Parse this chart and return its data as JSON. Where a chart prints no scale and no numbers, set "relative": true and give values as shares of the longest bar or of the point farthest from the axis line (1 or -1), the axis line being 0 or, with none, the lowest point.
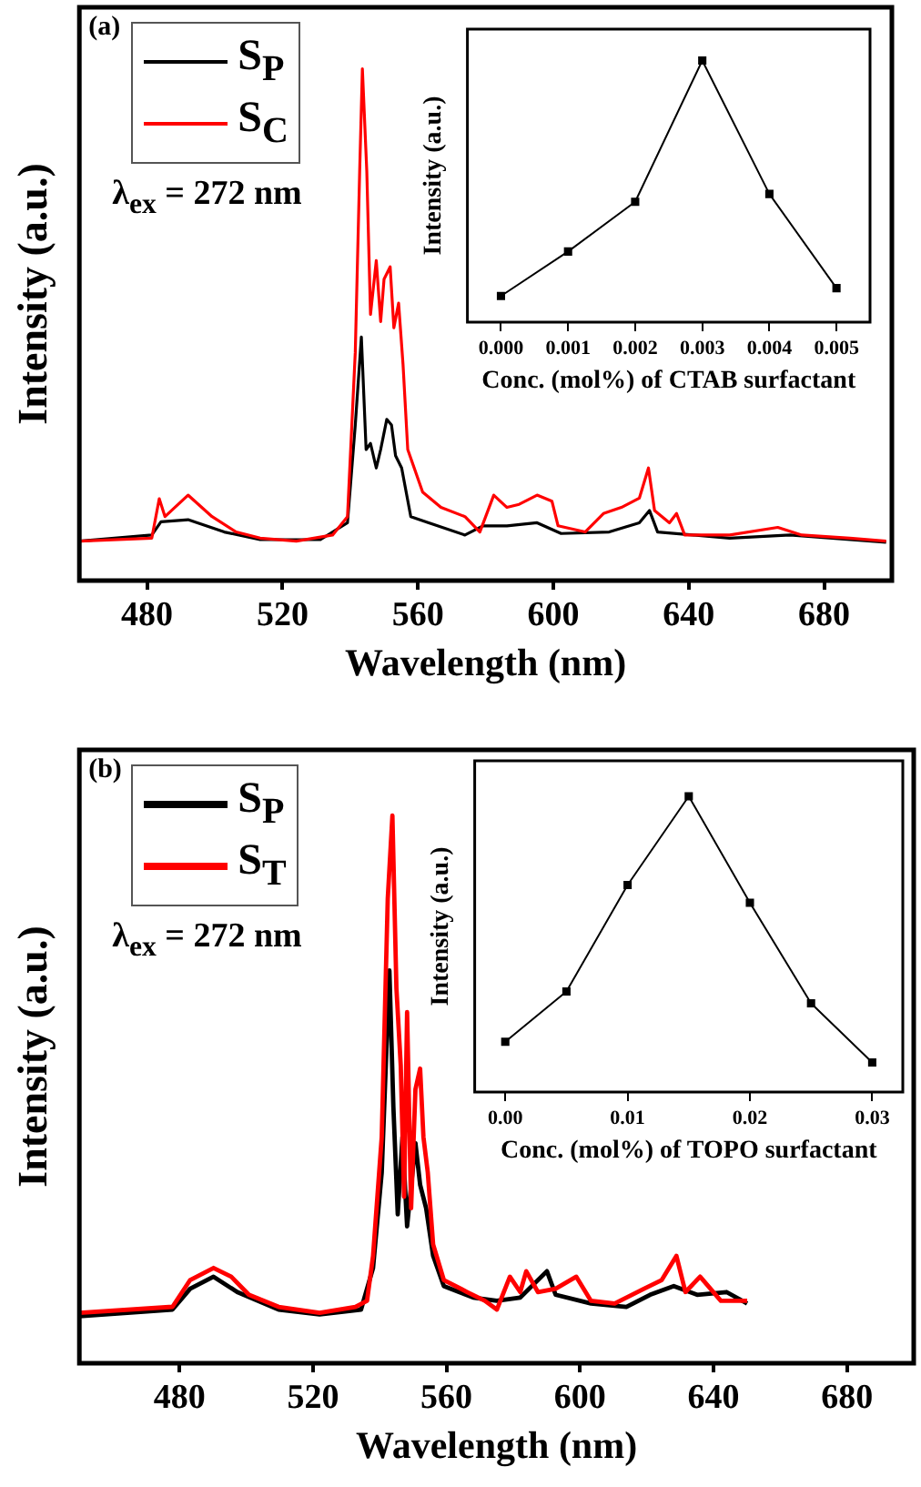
{
  "chart_data": [
    {
      "type": "line",
      "xlabel": "Wavelength (nm)",
      "ylabel": "Intensity (a.u.)",
      "relative": true,
      "xlim": [
        460,
        700
      ],
      "xticks": [
        480,
        520,
        560,
        600,
        640,
        680
      ],
      "legend": "top left",
      "marker": "none",
      "annotations": [
        "(a)",
        "λ$_{ex}$ = 272 nm"
      ],
      "series": [
        {
          "name": "S$_{P}$",
          "color": "#000000",
          "x": [
            460.1,
            481.4,
            484.1,
            492.1,
            502.8,
            513.4,
            531.2,
            539.2,
            541.5,
            543.3,
            544.7,
            546,
            547.7,
            549,
            550.8,
            552.2,
            553.4,
            555.2,
            557.9,
            563.2,
            573.9,
            579.2,
            586.3,
            595.2,
            602.3,
            616.5,
            625.4,
            628.4,
            630.8,
            652.1,
            669.9,
            698.3
          ],
          "values": [
            0.077,
            0.089,
            0.115,
            0.119,
            0.095,
            0.08,
            0.08,
            0.113,
            0.304,
            0.476,
            0.256,
            0.268,
            0.22,
            0.256,
            0.315,
            0.304,
            0.244,
            0.22,
            0.125,
            0.113,
            0.089,
            0.107,
            0.107,
            0.113,
            0.092,
            0.095,
            0.113,
            0.137,
            0.095,
            0.083,
            0.089,
            0.075
          ]
        },
        {
          "name": "S$_{C}$",
          "color": "#ff0000",
          "x": [
            460.1,
            481.4,
            483.6,
            485.3,
            492.1,
            499.2,
            506.3,
            513.4,
            524.1,
            534.8,
            539.2,
            541.5,
            542.8,
            543.6,
            544.9,
            546,
            547.7,
            549,
            550,
            551.8,
            552.9,
            554.3,
            555.6,
            557,
            561.4,
            566.8,
            573.9,
            578.3,
            582.4,
            586.3,
            589.9,
            595.2,
            599.6,
            601.4,
            609.4,
            614.8,
            620.1,
            625.4,
            628.1,
            629.9,
            634.3,
            636.4,
            638.8,
            652.1,
            666.3,
            673.4,
            687.6,
            698.3
          ],
          "values": [
            0.077,
            0.083,
            0.16,
            0.125,
            0.167,
            0.125,
            0.095,
            0.083,
            0.077,
            0.089,
            0.125,
            0.446,
            0.8,
            1,
            0.8,
            0.52,
            0.625,
            0.506,
            0.589,
            0.613,
            0.494,
            0.542,
            0.423,
            0.256,
            0.173,
            0.143,
            0.125,
            0.095,
            0.167,
            0.143,
            0.149,
            0.167,
            0.155,
            0.107,
            0.095,
            0.131,
            0.143,
            0.161,
            0.22,
            0.137,
            0.113,
            0.131,
            0.089,
            0.089,
            0.104,
            0.089,
            0.083,
            0.077
          ]
        }
      ]
    },
    {
      "type": "line",
      "xlabel": "Conc. (mol%) of CTAB surfactant",
      "ylabel": "Intensity (a.u.)",
      "relative": true,
      "xlim": [
        -0.0005,
        0.0055
      ],
      "xticks": [
        {
          "value": 0,
          "label": "0.000"
        },
        {
          "value": 0.001,
          "label": "0.001"
        },
        {
          "value": 0.002,
          "label": "0.002"
        },
        {
          "value": 0.003,
          "label": "0.003"
        },
        {
          "value": 0.004,
          "label": "0.004"
        },
        {
          "value": 0.005,
          "label": "0.005"
        }
      ],
      "marker": "square",
      "color": "#000000",
      "x": [
        0,
        0.001,
        0.002,
        0.003,
        0.004,
        0.005
      ],
      "values": [
        0.1,
        0.27,
        0.46,
        1,
        0.49,
        0.13
      ]
    },
    {
      "type": "line",
      "xlabel": "Wavelength (nm)",
      "ylabel": "Intensity (a.u.)",
      "relative": true,
      "xlim": [
        450,
        700
      ],
      "xticks": [
        480,
        520,
        560,
        600,
        640,
        680
      ],
      "legend": "top left",
      "marker": "none",
      "annotations": [
        "(b)",
        "λ$_{ex}$ = 272 nm"
      ],
      "series": [
        {
          "name": "S$_{P}$",
          "color": "#000000",
          "x": [
            450,
            477.9,
            483.2,
            490.2,
            497.3,
            509.7,
            522,
            534.4,
            538,
            540.6,
            542.9,
            544.1,
            545.4,
            546.8,
            548.2,
            550.7,
            552.1,
            553.9,
            556,
            559.2,
            568,
            575.1,
            582.1,
            590.1,
            592.7,
            603.3,
            613.9,
            621,
            628.1,
            635.1,
            643.9,
            650.1
          ],
          "values": [
            0.086,
            0.098,
            0.136,
            0.158,
            0.13,
            0.098,
            0.089,
            0.098,
            0.174,
            0.348,
            0.717,
            0.467,
            0.272,
            0.413,
            0.25,
            0.402,
            0.326,
            0.283,
            0.196,
            0.141,
            0.12,
            0.114,
            0.12,
            0.168,
            0.125,
            0.109,
            0.103,
            0.125,
            0.141,
            0.125,
            0.13,
            0.109
          ]
        },
        {
          "name": "S$_{T}$",
          "color": "#ff0000",
          "x": [
            450,
            477.9,
            483.2,
            490.2,
            495.5,
            500.8,
            509.7,
            522,
            532.7,
            536.2,
            538,
            540.6,
            542.4,
            543.8,
            545,
            546.3,
            547.3,
            548.2,
            549.4,
            550.7,
            552.1,
            553.1,
            554.4,
            556,
            559.2,
            566.2,
            571.5,
            575.1,
            579,
            582.1,
            583.9,
            587.4,
            592.7,
            598.9,
            603.3,
            610.4,
            619.2,
            624.5,
            628.9,
            631.6,
            636,
            642.2,
            650.1
          ],
          "values": [
            0.092,
            0.103,
            0.152,
            0.174,
            0.158,
            0.125,
            0.103,
            0.092,
            0.103,
            0.114,
            0.196,
            0.413,
            0.848,
            1,
            0.685,
            0.543,
            0.304,
            0.641,
            0.283,
            0.5,
            0.538,
            0.413,
            0.348,
            0.217,
            0.152,
            0.13,
            0.114,
            0.098,
            0.158,
            0.13,
            0.168,
            0.13,
            0.136,
            0.158,
            0.114,
            0.109,
            0.136,
            0.152,
            0.196,
            0.13,
            0.158,
            0.114,
            0.114
          ]
        }
      ]
    },
    {
      "type": "line",
      "xlabel": "Conc. (mol%) of TOPO surfactant",
      "ylabel": "Intensity (a.u.)",
      "relative": true,
      "xlim": [
        -0.0025,
        0.0325
      ],
      "xticks": [
        {
          "value": 0,
          "label": "0.00"
        },
        {
          "value": 0.01,
          "label": "0.01"
        },
        {
          "value": 0.02,
          "label": "0.02"
        },
        {
          "value": 0.03,
          "label": "0.03"
        }
      ],
      "marker": "square",
      "color": "#000000",
      "x": [
        0,
        0.005,
        0.01,
        0.015,
        0.02,
        0.025,
        0.03
      ],
      "values": [
        0.17,
        0.34,
        0.7,
        1,
        0.64,
        0.3,
        0.1
      ]
    }
  ]
}
